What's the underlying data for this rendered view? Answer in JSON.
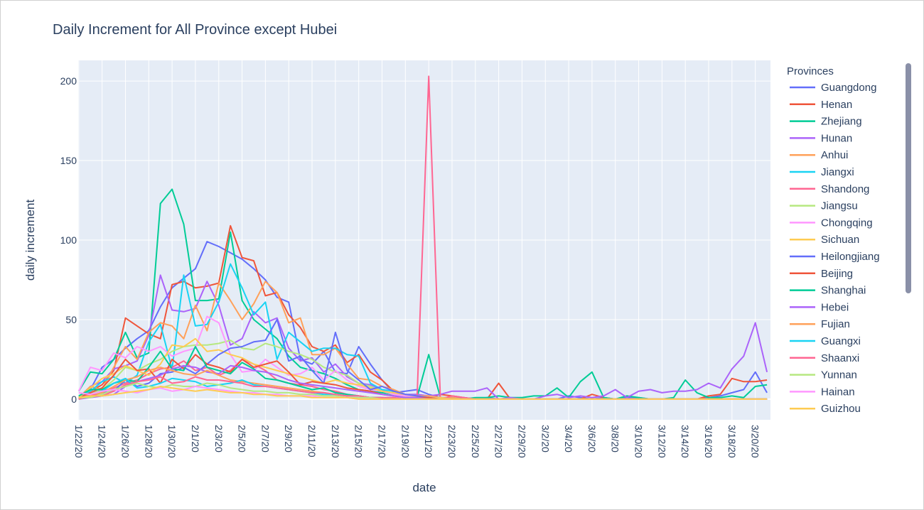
{
  "chart_data": {
    "type": "line",
    "title": "Daily Increment for All Province except Hubei",
    "xlabel": "date",
    "ylabel": "daily increment",
    "ylim": [
      -13,
      213
    ],
    "yticks": [
      0,
      50,
      100,
      150,
      200
    ],
    "legend_title": "Provinces",
    "legend_placement": "right",
    "grid": true,
    "x": [
      "1/22/20",
      "1/23/20",
      "1/24/20",
      "1/25/20",
      "1/26/20",
      "1/27/20",
      "1/28/20",
      "1/29/20",
      "1/30/20",
      "1/31/20",
      "2/1/20",
      "2/2/20",
      "2/3/20",
      "2/4/20",
      "2/5/20",
      "2/6/20",
      "2/7/20",
      "2/8/20",
      "2/9/20",
      "2/10/20",
      "2/11/20",
      "2/12/20",
      "2/13/20",
      "2/14/20",
      "2/15/20",
      "2/16/20",
      "2/17/20",
      "2/18/20",
      "2/19/20",
      "2/20/20",
      "2/21/20",
      "2/22/20",
      "2/23/20",
      "2/24/20",
      "2/25/20",
      "2/26/20",
      "2/27/20",
      "2/28/20",
      "2/29/20",
      "3/1/20",
      "3/2/20",
      "3/3/20",
      "3/4/20",
      "3/5/20",
      "3/6/20",
      "3/7/20",
      "3/8/20",
      "3/9/20",
      "3/10/20",
      "3/11/20",
      "3/12/20",
      "3/13/20",
      "3/14/20",
      "3/15/20",
      "3/16/20",
      "3/17/20",
      "3/18/20",
      "3/19/20",
      "3/20/20",
      "3/21/20"
    ],
    "xtick_labels": [
      "1/22/20",
      "1/24/20",
      "1/26/20",
      "1/28/20",
      "1/30/20",
      "2/1/20",
      "2/3/20",
      "2/5/20",
      "2/7/20",
      "2/9/20",
      "2/11/20",
      "2/13/20",
      "2/15/20",
      "2/17/20",
      "2/19/20",
      "2/21/20",
      "2/23/20",
      "2/25/20",
      "2/27/20",
      "2/29/20",
      "3/2/20",
      "3/4/20",
      "3/6/20",
      "3/8/20",
      "3/10/20",
      "3/12/20",
      "3/14/20",
      "3/16/20",
      "3/18/20",
      "3/20/20"
    ],
    "series": [
      {
        "name": "Guangdong",
        "color": "#636efa",
        "values": [
          0,
          6,
          20,
          25,
          32,
          38,
          43,
          58,
          70,
          76,
          82,
          99,
          96,
          92,
          88,
          82,
          75,
          64,
          61,
          25,
          22,
          30,
          17,
          16,
          33,
          22,
          12,
          4,
          5,
          6,
          3,
          1,
          0,
          1,
          0,
          1,
          0,
          0,
          0,
          0,
          0,
          0,
          2,
          1,
          0,
          1,
          0,
          1,
          1,
          0,
          0,
          0,
          0,
          0,
          1,
          2,
          4,
          6,
          17,
          4
        ]
      },
      {
        "name": "Henan",
        "color": "#EF553B",
        "values": [
          0,
          5,
          9,
          18,
          51,
          46,
          41,
          38,
          72,
          74,
          70,
          71,
          73,
          109,
          89,
          87,
          65,
          67,
          53,
          45,
          33,
          30,
          34,
          23,
          28,
          17,
          12,
          5,
          3,
          2,
          1,
          3,
          2,
          1,
          0,
          0,
          10,
          0,
          0,
          0,
          0,
          0,
          0,
          0,
          3,
          1,
          0,
          0,
          0,
          0,
          0,
          0,
          0,
          0,
          2,
          3,
          13,
          11,
          11,
          12
        ]
      },
      {
        "name": "Zhejiang",
        "color": "#00cc96",
        "values": [
          5,
          17,
          16,
          25,
          42,
          26,
          29,
          123,
          132,
          110,
          62,
          62,
          63,
          105,
          62,
          50,
          44,
          38,
          27,
          20,
          18,
          16,
          13,
          9,
          6,
          5,
          4,
          3,
          2,
          1,
          28,
          1,
          1,
          0,
          1,
          1,
          2,
          1,
          1,
          2,
          2,
          7,
          1,
          11,
          17,
          1,
          0,
          2,
          1,
          0,
          0,
          1,
          12,
          4,
          1,
          1,
          2,
          1,
          8,
          9
        ]
      },
      {
        "name": "Hunan",
        "color": "#ab63fa",
        "values": [
          1,
          8,
          11,
          19,
          21,
          24,
          40,
          78,
          56,
          55,
          57,
          74,
          59,
          34,
          38,
          55,
          48,
          51,
          32,
          24,
          26,
          17,
          22,
          14,
          10,
          9,
          6,
          3,
          3,
          3,
          2,
          3,
          5,
          5,
          5,
          7,
          0,
          1,
          0,
          0,
          2,
          3,
          1,
          2,
          1,
          2,
          6,
          1,
          5,
          6,
          4,
          5,
          5,
          6,
          10,
          7,
          19,
          27,
          48,
          17
        ]
      },
      {
        "name": "Anhui",
        "color": "#FFA15A",
        "values": [
          1,
          8,
          6,
          20,
          33,
          25,
          42,
          48,
          46,
          38,
          59,
          43,
          73,
          62,
          50,
          60,
          74,
          67,
          48,
          51,
          28,
          28,
          32,
          22,
          13,
          12,
          8,
          6,
          3,
          2,
          2,
          1,
          1,
          0,
          0,
          0,
          0,
          0,
          0,
          0,
          0,
          0,
          0,
          0,
          0,
          0,
          0,
          0,
          0,
          0,
          0,
          0,
          0,
          0,
          0,
          0,
          0,
          0,
          0,
          0
        ]
      },
      {
        "name": "Jiangxi",
        "color": "#19d3f3",
        "values": [
          2,
          5,
          11,
          14,
          10,
          15,
          36,
          47,
          19,
          78,
          46,
          47,
          61,
          85,
          70,
          53,
          61,
          25,
          42,
          36,
          30,
          32,
          32,
          28,
          27,
          10,
          6,
          5,
          3,
          2,
          1,
          1,
          0,
          0,
          0,
          0,
          0,
          0,
          0,
          0,
          0,
          0,
          0,
          0,
          0,
          0,
          0,
          0,
          0,
          0,
          0,
          0,
          0,
          0,
          0,
          0,
          0,
          0,
          0,
          0
        ]
      },
      {
        "name": "Shandong",
        "color": "#FF6692",
        "values": [
          0,
          2,
          5,
          7,
          10,
          12,
          16,
          19,
          20,
          24,
          18,
          20,
          15,
          18,
          25,
          22,
          18,
          12,
          10,
          9,
          8,
          6,
          5,
          3,
          2,
          1,
          1,
          1,
          0,
          0,
          203,
          0,
          2,
          1,
          0,
          0,
          0,
          0,
          0,
          0,
          0,
          0,
          0,
          0,
          0,
          0,
          0,
          0,
          0,
          0,
          0,
          0,
          0,
          0,
          0,
          0,
          0,
          0,
          0,
          0
        ]
      },
      {
        "name": "Jiangsu",
        "color": "#B6E880",
        "values": [
          0,
          3,
          6,
          12,
          20,
          18,
          22,
          25,
          30,
          33,
          34,
          34,
          35,
          37,
          32,
          31,
          35,
          33,
          30,
          28,
          25,
          20,
          17,
          15,
          10,
          8,
          5,
          3,
          2,
          1,
          1,
          0,
          0,
          0,
          0,
          0,
          0,
          0,
          0,
          0,
          0,
          0,
          0,
          0,
          0,
          0,
          0,
          0,
          0,
          0,
          0,
          0,
          0,
          0,
          0,
          0,
          0,
          0,
          0,
          0
        ]
      },
      {
        "name": "Chongqing",
        "color": "#FF97FF",
        "values": [
          5,
          20,
          18,
          29,
          26,
          33,
          30,
          33,
          27,
          30,
          32,
          52,
          48,
          28,
          17,
          18,
          25,
          20,
          15,
          16,
          20,
          12,
          18,
          12,
          8,
          6,
          5,
          3,
          2,
          2,
          1,
          1,
          0,
          0,
          0,
          0,
          0,
          0,
          0,
          0,
          0,
          0,
          0,
          0,
          0,
          0,
          0,
          0,
          0,
          0,
          0,
          0,
          0,
          0,
          0,
          0,
          0,
          0,
          0,
          0
        ]
      },
      {
        "name": "Sichuan",
        "color": "#FECB52",
        "values": [
          1,
          7,
          13,
          16,
          21,
          18,
          15,
          22,
          34,
          33,
          38,
          30,
          31,
          28,
          26,
          22,
          20,
          18,
          16,
          14,
          12,
          10,
          12,
          10,
          9,
          7,
          5,
          4,
          3,
          2,
          1,
          1,
          0,
          0,
          0,
          0,
          0,
          0,
          0,
          0,
          0,
          0,
          0,
          0,
          0,
          0,
          0,
          0,
          0,
          0,
          0,
          0,
          0,
          0,
          0,
          0,
          0,
          0,
          0,
          0
        ]
      },
      {
        "name": "Heilongjiang",
        "color": "#636efa",
        "values": [
          0,
          2,
          4,
          5,
          12,
          8,
          10,
          16,
          17,
          20,
          16,
          22,
          28,
          32,
          33,
          36,
          37,
          50,
          24,
          27,
          18,
          10,
          42,
          18,
          12,
          6,
          8,
          5,
          3,
          2,
          1,
          0,
          0,
          0,
          0,
          0,
          0,
          0,
          0,
          0,
          0,
          0,
          0,
          0,
          0,
          0,
          0,
          0,
          0,
          0,
          0,
          0,
          0,
          0,
          0,
          0,
          0,
          0,
          0,
          0
        ]
      },
      {
        "name": "Beijing",
        "color": "#EF553B",
        "values": [
          0,
          4,
          7,
          15,
          25,
          18,
          19,
          10,
          25,
          19,
          28,
          22,
          20,
          17,
          25,
          20,
          22,
          24,
          17,
          9,
          11,
          10,
          9,
          7,
          6,
          5,
          3,
          2,
          1,
          1,
          1,
          0,
          0,
          0,
          0,
          0,
          0,
          0,
          0,
          0,
          0,
          0,
          0,
          0,
          0,
          0,
          0,
          0,
          0,
          0,
          0,
          0,
          0,
          0,
          0,
          0,
          0,
          0,
          0,
          0
        ]
      },
      {
        "name": "Shanghai",
        "color": "#00cc96",
        "values": [
          2,
          6,
          6,
          10,
          12,
          11,
          20,
          30,
          19,
          18,
          33,
          20,
          18,
          16,
          23,
          19,
          13,
          12,
          10,
          8,
          6,
          7,
          4,
          3,
          2,
          1,
          1,
          0,
          0,
          0,
          0,
          0,
          0,
          0,
          0,
          0,
          0,
          0,
          0,
          0,
          0,
          0,
          0,
          0,
          0,
          0,
          0,
          0,
          0,
          0,
          0,
          0,
          0,
          0,
          0,
          0,
          0,
          0,
          0,
          0
        ]
      },
      {
        "name": "Hebei",
        "color": "#ab63fa",
        "values": [
          0,
          1,
          2,
          3,
          8,
          11,
          13,
          15,
          19,
          21,
          20,
          17,
          16,
          21,
          20,
          18,
          17,
          15,
          12,
          10,
          9,
          8,
          7,
          6,
          5,
          4,
          3,
          2,
          1,
          1,
          0,
          0,
          0,
          0,
          0,
          0,
          0,
          0,
          0,
          0,
          0,
          0,
          0,
          0,
          0,
          0,
          0,
          0,
          0,
          0,
          0,
          0,
          0,
          0,
          0,
          0,
          0,
          0,
          0,
          0
        ]
      },
      {
        "name": "Fujian",
        "color": "#FFA15A",
        "values": [
          0,
          2,
          4,
          8,
          12,
          14,
          18,
          20,
          18,
          16,
          15,
          18,
          15,
          12,
          11,
          10,
          9,
          8,
          7,
          6,
          5,
          4,
          3,
          2,
          2,
          1,
          1,
          0,
          0,
          0,
          0,
          0,
          0,
          0,
          0,
          0,
          0,
          0,
          0,
          0,
          0,
          0,
          0,
          0,
          0,
          0,
          0,
          0,
          0,
          0,
          0,
          0,
          0,
          0,
          0,
          0,
          0,
          0,
          0,
          0
        ]
      },
      {
        "name": "Guangxi",
        "color": "#19d3f3",
        "values": [
          0,
          3,
          5,
          10,
          13,
          7,
          8,
          10,
          13,
          12,
          11,
          8,
          9,
          10,
          12,
          9,
          8,
          7,
          6,
          5,
          4,
          3,
          3,
          2,
          2,
          1,
          1,
          0,
          0,
          0,
          0,
          0,
          0,
          0,
          0,
          0,
          0,
          0,
          0,
          0,
          0,
          0,
          0,
          0,
          0,
          0,
          0,
          0,
          0,
          0,
          0,
          0,
          0,
          0,
          0,
          0,
          0,
          0,
          0,
          0
        ]
      },
      {
        "name": "Shaanxi",
        "color": "#FF6692",
        "values": [
          0,
          3,
          2,
          5,
          9,
          11,
          12,
          14,
          10,
          11,
          14,
          12,
          12,
          11,
          10,
          8,
          8,
          7,
          6,
          5,
          4,
          4,
          3,
          2,
          2,
          1,
          1,
          0,
          0,
          0,
          0,
          0,
          0,
          0,
          0,
          0,
          0,
          0,
          0,
          0,
          0,
          0,
          0,
          0,
          0,
          0,
          0,
          0,
          0,
          0,
          0,
          0,
          0,
          0,
          0,
          0,
          0,
          0,
          0,
          0
        ]
      },
      {
        "name": "Yunnan",
        "color": "#B6E880",
        "values": [
          1,
          1,
          3,
          6,
          8,
          10,
          8,
          7,
          9,
          8,
          8,
          10,
          9,
          7,
          6,
          5,
          5,
          4,
          4,
          3,
          3,
          2,
          2,
          1,
          1,
          1,
          0,
          0,
          0,
          0,
          0,
          0,
          0,
          0,
          0,
          0,
          0,
          0,
          0,
          0,
          0,
          0,
          0,
          0,
          0,
          0,
          0,
          0,
          0,
          0,
          0,
          0,
          0,
          0,
          0,
          0,
          0,
          0,
          0,
          0
        ]
      },
      {
        "name": "Hainan",
        "color": "#FF97FF",
        "values": [
          4,
          3,
          5,
          6,
          5,
          4,
          6,
          7,
          5,
          6,
          8,
          7,
          6,
          5,
          4,
          4,
          3,
          3,
          2,
          2,
          2,
          1,
          1,
          1,
          0,
          0,
          0,
          0,
          0,
          0,
          0,
          0,
          0,
          0,
          0,
          0,
          0,
          0,
          0,
          0,
          0,
          0,
          0,
          0,
          0,
          0,
          0,
          0,
          0,
          0,
          0,
          0,
          0,
          0,
          0,
          0,
          0,
          0,
          0,
          0
        ]
      },
      {
        "name": "Guizhou",
        "color": "#FECB52",
        "values": [
          1,
          2,
          2,
          3,
          4,
          5,
          6,
          8,
          7,
          6,
          5,
          6,
          5,
          4,
          4,
          3,
          3,
          2,
          2,
          2,
          1,
          1,
          1,
          1,
          0,
          0,
          0,
          0,
          0,
          0,
          0,
          0,
          0,
          0,
          0,
          0,
          0,
          0,
          0,
          0,
          0,
          0,
          0,
          0,
          0,
          0,
          0,
          0,
          0,
          0,
          0,
          0,
          0,
          0,
          0,
          0,
          0,
          0,
          0,
          0
        ]
      }
    ]
  }
}
